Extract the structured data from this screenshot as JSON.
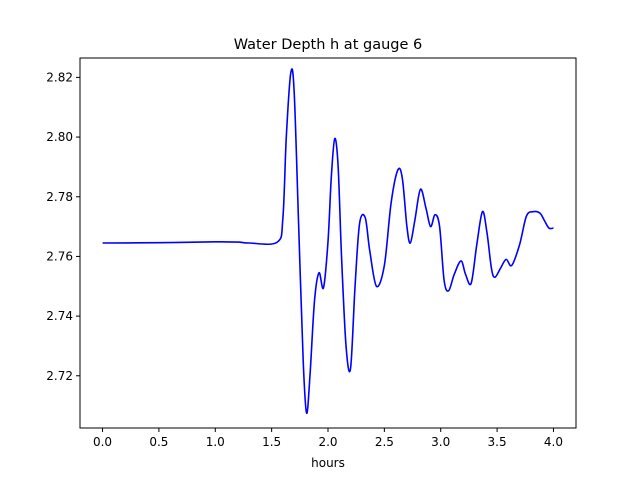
{
  "chart_data": {
    "type": "line",
    "title": "Water Depth h at gauge 6",
    "xlabel": "hours",
    "ylabel": "",
    "xlim": [
      -0.2,
      4.2
    ],
    "ylim": [
      2.7025,
      2.8265
    ],
    "grid": false,
    "x_ticks": [
      0.0,
      0.5,
      1.0,
      1.5,
      2.0,
      2.5,
      3.0,
      3.5,
      4.0
    ],
    "x_tick_labels": [
      "0.0",
      "0.5",
      "1.0",
      "1.5",
      "2.0",
      "2.5",
      "3.0",
      "3.5",
      "4.0"
    ],
    "y_ticks": [
      2.72,
      2.74,
      2.76,
      2.78,
      2.8,
      2.82
    ],
    "y_tick_labels": [
      "2.72",
      "2.74",
      "2.76",
      "2.78",
      "2.80",
      "2.82"
    ],
    "series": [
      {
        "color": "#0000ff",
        "x": [
          0.0,
          0.5,
          1.0,
          1.2,
          1.3,
          1.55,
          1.6,
          1.63,
          1.67,
          1.7,
          1.74,
          1.78,
          1.81,
          1.84,
          1.88,
          1.92,
          1.96,
          2.0,
          2.03,
          2.06,
          2.09,
          2.12,
          2.16,
          2.2,
          2.24,
          2.28,
          2.33,
          2.37,
          2.43,
          2.5,
          2.56,
          2.62,
          2.66,
          2.7,
          2.73,
          2.77,
          2.82,
          2.87,
          2.91,
          2.95,
          2.99,
          3.03,
          3.07,
          3.12,
          3.18,
          3.22,
          3.27,
          3.32,
          3.37,
          3.41,
          3.45,
          3.48,
          3.53,
          3.58,
          3.63,
          3.7,
          3.76,
          3.82,
          3.88,
          3.92,
          3.96,
          4.0
        ],
        "y": [
          2.7645,
          2.7646,
          2.7649,
          2.7648,
          2.7645,
          2.7648,
          2.773,
          2.8,
          2.8215,
          2.815,
          2.77,
          2.725,
          2.7075,
          2.72,
          2.745,
          2.7545,
          2.7495,
          2.765,
          2.787,
          2.7995,
          2.79,
          2.76,
          2.73,
          2.7225,
          2.75,
          2.771,
          2.773,
          2.762,
          2.75,
          2.757,
          2.778,
          2.789,
          2.786,
          2.77,
          2.7645,
          2.772,
          2.7825,
          2.776,
          2.77,
          2.774,
          2.77,
          2.752,
          2.7485,
          2.754,
          2.7585,
          2.754,
          2.751,
          2.764,
          2.775,
          2.768,
          2.756,
          2.753,
          2.756,
          2.759,
          2.757,
          2.764,
          2.7735,
          2.775,
          2.7745,
          2.772,
          2.7695,
          2.7695
        ]
      }
    ]
  }
}
